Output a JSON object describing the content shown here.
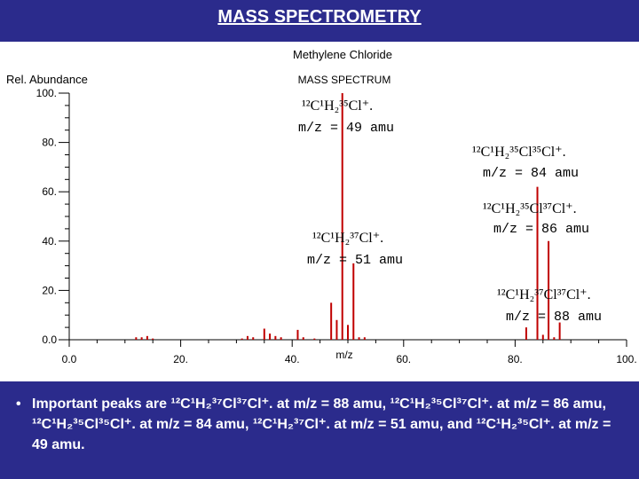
{
  "slide": {
    "title": "MASS SPECTROMETRY",
    "bullet": "Important peaks are ¹²C¹H₂³⁷Cl³⁷Cl⁺. at m/z = 88 amu, ¹²C¹H₂³⁵Cl³⁷Cl⁺. at m/z = 86 amu, ¹²C¹H₂³⁵Cl³⁵Cl⁺. at m/z = 84 amu, ¹²C¹H₂³⁷Cl⁺. at m/z = 51 amu, and ¹²C¹H₂³⁵Cl⁺. at m/z = 49 amu."
  },
  "colors": {
    "band": "#2b2b8c",
    "peak": "#c00000",
    "axis": "#000000",
    "text_white": "#ffffff"
  },
  "chart_data": {
    "type": "bar",
    "title": "Methylene Chloride",
    "subtitle": "MASS SPECTRUM",
    "xlabel": "m/z",
    "ylabel": "Rel. Abundance",
    "xlim": [
      0,
      100
    ],
    "ylim": [
      0,
      100
    ],
    "x_ticks": [
      "0.0",
      "20.",
      "40.",
      "60.",
      "80.",
      "100."
    ],
    "y_ticks": [
      "0.0",
      "20.",
      "40.",
      "60.",
      "80.",
      "100."
    ],
    "peaks": [
      {
        "mz": 12,
        "abundance": 1
      },
      {
        "mz": 13,
        "abundance": 1
      },
      {
        "mz": 14,
        "abundance": 1.5
      },
      {
        "mz": 15,
        "abundance": 0.5
      },
      {
        "mz": 31,
        "abundance": 0.5
      },
      {
        "mz": 32,
        "abundance": 1.5
      },
      {
        "mz": 33,
        "abundance": 1
      },
      {
        "mz": 35,
        "abundance": 4.5
      },
      {
        "mz": 36,
        "abundance": 2.5
      },
      {
        "mz": 37,
        "abundance": 1.5
      },
      {
        "mz": 38,
        "abundance": 1
      },
      {
        "mz": 41,
        "abundance": 4
      },
      {
        "mz": 42,
        "abundance": 1
      },
      {
        "mz": 44,
        "abundance": 0.5
      },
      {
        "mz": 47,
        "abundance": 15
      },
      {
        "mz": 48,
        "abundance": 8
      },
      {
        "mz": 49,
        "abundance": 100
      },
      {
        "mz": 50,
        "abundance": 6
      },
      {
        "mz": 51,
        "abundance": 31
      },
      {
        "mz": 52,
        "abundance": 1
      },
      {
        "mz": 53,
        "abundance": 1
      },
      {
        "mz": 82,
        "abundance": 5
      },
      {
        "mz": 84,
        "abundance": 62
      },
      {
        "mz": 85,
        "abundance": 2
      },
      {
        "mz": 86,
        "abundance": 40
      },
      {
        "mz": 87,
        "abundance": 1
      },
      {
        "mz": 88,
        "abundance": 7
      }
    ],
    "annotations": [
      {
        "formula": "¹²C¹H₂³⁵Cl⁺.",
        "mz_text": "m/z = 49 amu"
      },
      {
        "formula": "¹²C¹H₂³⁵Cl³⁵Cl⁺.",
        "mz_text": "m/z = 84 amu"
      },
      {
        "formula": "¹²C¹H₂³⁵Cl³⁷Cl⁺.",
        "mz_text": "m/z = 86 amu"
      },
      {
        "formula": "¹²C¹H₂³⁷Cl⁺.",
        "mz_text": "m/z = 51 amu"
      },
      {
        "formula": "¹²C¹H₂³⁷Cl³⁷Cl⁺.",
        "mz_text": "m/z = 88 amu"
      }
    ]
  }
}
